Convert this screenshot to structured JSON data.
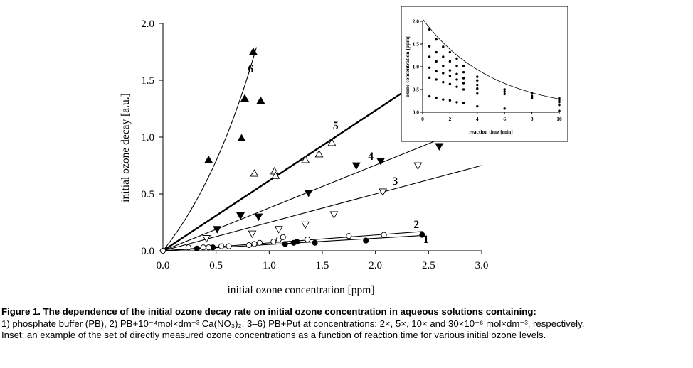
{
  "chart_data": [
    {
      "type": "scatter",
      "xlabel": "initial ozone concentration [ppm]",
      "ylabel": "initial ozone decay [a.u.]",
      "xlim": [
        0,
        3.0
      ],
      "ylim": [
        0,
        2.0
      ],
      "xticks": [
        "0.0",
        "0.5",
        "1.0",
        "1.5",
        "2.0",
        "2.5",
        "3.0"
      ],
      "yticks": [
        "0.0",
        "0.5",
        "1.0",
        "1.5",
        "2.0"
      ],
      "grid": false,
      "series": [
        {
          "name": "1",
          "marker": "filled-circle",
          "fit": "linear",
          "fit_x_end": 2.45,
          "fit_y_end": 0.135,
          "x": [
            0.32,
            0.47,
            1.15,
            1.23,
            1.26,
            1.43,
            1.91,
            2.44
          ],
          "y": [
            0.02,
            0.03,
            0.06,
            0.07,
            0.08,
            0.07,
            0.09,
            0.14
          ]
        },
        {
          "name": "2",
          "marker": "open-circle",
          "fit": "linear",
          "fit_x_end": 2.45,
          "fit_y_end": 0.17,
          "x": [
            0.0,
            0.24,
            0.38,
            0.43,
            0.55,
            0.62,
            0.81,
            0.86,
            0.91,
            1.04,
            1.09,
            1.13,
            1.36,
            1.75,
            2.08
          ],
          "y": [
            0.0,
            0.03,
            0.03,
            0.03,
            0.04,
            0.04,
            0.05,
            0.06,
            0.07,
            0.08,
            0.1,
            0.12,
            0.1,
            0.13,
            0.14
          ]
        },
        {
          "name": "3",
          "marker": "open-triangle-down",
          "fit": "linear",
          "fit_x_end": 3.0,
          "fit_y_end": 0.75,
          "x": [
            0.41,
            0.84,
            1.09,
            1.34,
            1.61,
            2.07,
            2.4
          ],
          "y": [
            0.11,
            0.15,
            0.19,
            0.23,
            0.32,
            0.52,
            0.75
          ]
        },
        {
          "name": "4",
          "marker": "filled-triangle-down",
          "fit": "linear",
          "fit_x_end": 2.6,
          "fit_y_end": 0.98,
          "x": [
            0.51,
            0.73,
            0.9,
            1.37,
            1.82,
            2.05,
            2.6
          ],
          "y": [
            0.19,
            0.31,
            0.3,
            0.51,
            0.75,
            0.79,
            0.92
          ]
        },
        {
          "name": "5",
          "marker": "open-triangle-up",
          "fit": "linear-thick",
          "fit_x_end": 2.35,
          "fit_y_end": 1.45,
          "x": [
            0.86,
            1.05,
            1.06,
            1.34,
            1.47,
            1.59
          ],
          "y": [
            0.68,
            0.7,
            0.66,
            0.8,
            0.85,
            0.95
          ]
        },
        {
          "name": "6",
          "marker": "filled-triangle-up",
          "fit": "exponential",
          "fit_x_end": 0.88,
          "fit_y_end": 1.79,
          "x": [
            0.43,
            0.74,
            0.77,
            0.85,
            0.92
          ],
          "y": [
            0.8,
            0.99,
            1.34,
            1.75,
            1.32
          ]
        }
      ]
    },
    {
      "type": "scatter",
      "subtype": "inset",
      "xlabel": "reaction time [min]",
      "ylabel": "ozone concentration [ppm]",
      "xlim": [
        0,
        10
      ],
      "ylim": [
        0,
        2.0
      ],
      "xticks": [
        "0",
        "2",
        "4",
        "6",
        "8",
        "10"
      ],
      "yticks": [
        "0.0",
        "0.5",
        "1.0",
        "1.5",
        "2.0"
      ],
      "envelope_curve": "exponential decay",
      "series": [
        {
          "x": [
            0.5,
            1,
            1.5,
            2,
            2.5,
            3,
            4,
            6,
            8,
            10
          ],
          "y": [
            1.82,
            1.6,
            1.44,
            1.32,
            1.18,
            1.02,
            0.78,
            0.5,
            0.42,
            0.31
          ]
        },
        {
          "x": [
            0.5,
            1,
            1.5,
            2,
            2.5,
            3,
            4,
            6,
            8,
            10
          ],
          "y": [
            1.45,
            1.32,
            1.22,
            1.12,
            1.02,
            0.88,
            0.7,
            0.45,
            0.36,
            0.26
          ]
        },
        {
          "x": [
            0.5,
            1,
            1.5,
            2,
            2.5,
            3,
            4,
            6,
            8,
            10
          ],
          "y": [
            1.22,
            1.12,
            1.02,
            0.92,
            0.84,
            0.75,
            0.6,
            0.4,
            0.31,
            0.22
          ]
        },
        {
          "x": [
            0.5,
            1,
            1.5,
            2,
            2.5,
            3,
            4,
            10
          ],
          "y": [
            0.98,
            0.9,
            0.86,
            0.8,
            0.72,
            0.64,
            0.52,
            0.16
          ]
        },
        {
          "x": [
            0.5,
            1,
            1.5,
            2,
            2.5,
            3,
            4
          ],
          "y": [
            0.76,
            0.72,
            0.66,
            0.62,
            0.56,
            0.5,
            0.41
          ]
        },
        {
          "x": [
            0.5,
            1,
            1.5,
            2,
            2.5,
            3,
            4,
            6,
            10
          ],
          "y": [
            0.35,
            0.32,
            0.28,
            0.26,
            0.22,
            0.2,
            0.13,
            0.08,
            0.03
          ]
        }
      ]
    }
  ],
  "caption": {
    "line1": "Figure 1. The dependence of the initial ozone decay rate on initial ozone concentration in aqueous solutions containing:",
    "line2": "1) phosphate buffer (PB), 2) PB+10⁻⁴mol×dm⁻³ Ca(NO₃)₂, 3–6) PB+Put at concentrations: 2×, 5×, 10× and 30×10⁻⁶ mol×dm⁻³, respectively.",
    "line3": "Inset: an example of the set of directly measured ozone concentrations as a function of reaction time for various initial ozone levels."
  },
  "colors": {
    "ink": "#000000",
    "background": "#ffffff"
  }
}
